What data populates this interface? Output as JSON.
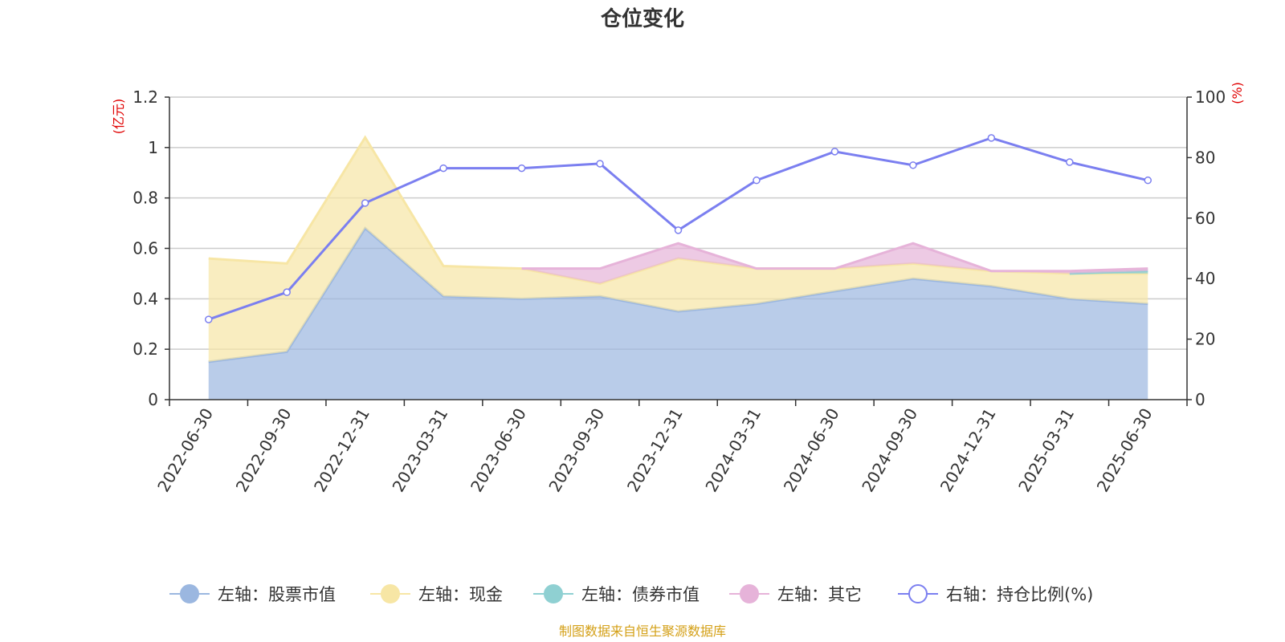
{
  "chart_data": {
    "type": "area",
    "title": "仓位变化",
    "left_axis_unit": "(亿元)",
    "right_axis_unit": "(%)",
    "categories": [
      "2022-06-30",
      "2022-09-30",
      "2022-12-31",
      "2023-03-31",
      "2023-06-30",
      "2023-09-30",
      "2023-12-31",
      "2024-03-31",
      "2024-06-30",
      "2024-09-30",
      "2024-12-31",
      "2025-03-31",
      "2025-06-30"
    ],
    "left_ylim": [
      0,
      1.2
    ],
    "left_ticks": [
      "0",
      "0.2",
      "0.4",
      "0.6",
      "0.8",
      "1",
      "1.2"
    ],
    "right_ylim": [
      0,
      100
    ],
    "right_ticks": [
      "0",
      "20",
      "40",
      "60",
      "80",
      "100"
    ],
    "grid": true,
    "legend_position": "bottom",
    "stacked_series": [
      {
        "name": "左轴：股票市值",
        "color": "#9bb7e0",
        "values": [
          0.15,
          0.19,
          0.68,
          0.41,
          0.4,
          0.41,
          0.35,
          0.38,
          0.43,
          0.48,
          0.45,
          0.4,
          0.38
        ]
      },
      {
        "name": "左轴：现金",
        "color": "#f7e6a5",
        "values": [
          0.41,
          0.35,
          0.36,
          0.12,
          0.12,
          0.05,
          0.21,
          0.14,
          0.09,
          0.06,
          0.06,
          0.1,
          0.12
        ]
      },
      {
        "name": "左轴：债券市值",
        "color": "#8fd0d2",
        "values": [
          0,
          0,
          0,
          0,
          0,
          0,
          0,
          0,
          0,
          0,
          0,
          0,
          0.01
        ]
      },
      {
        "name": "左轴：其它",
        "color": "#e6b3d9",
        "values": [
          0,
          0,
          0,
          0,
          0,
          0.06,
          0.06,
          0,
          0,
          0.08,
          0,
          0.01,
          0.01
        ]
      }
    ],
    "line_series": {
      "name": "右轴：持仓比例(%)",
      "color": "#7b7ff0",
      "values": [
        26.5,
        35.5,
        65,
        76.5,
        76.5,
        78,
        56,
        72.5,
        82,
        77.5,
        86.5,
        78.5,
        72.5
      ]
    }
  },
  "source": "制图数据来自恒生聚源数据库"
}
